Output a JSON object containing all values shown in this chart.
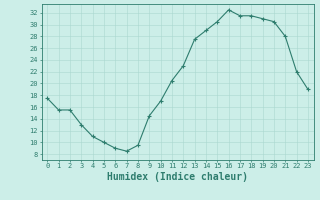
{
  "x": [
    0,
    1,
    2,
    3,
    4,
    5,
    6,
    7,
    8,
    9,
    10,
    11,
    12,
    13,
    14,
    15,
    16,
    17,
    18,
    19,
    20,
    21,
    22,
    23
  ],
  "y": [
    17.5,
    15.5,
    15.5,
    13,
    11,
    10,
    9,
    8.5,
    9.5,
    14.5,
    17,
    20.5,
    23,
    27.5,
    29,
    30.5,
    32.5,
    31.5,
    31.5,
    31,
    30.5,
    28,
    22,
    19
  ],
  "line_color": "#2e7d6e",
  "marker": "+",
  "bg_color": "#cceee8",
  "grid_color": "#aad8d0",
  "xlabel": "Humidex (Indice chaleur)",
  "xlim": [
    -0.5,
    23.5
  ],
  "ylim": [
    7,
    33.5
  ],
  "yticks": [
    8,
    10,
    12,
    14,
    16,
    18,
    20,
    22,
    24,
    26,
    28,
    30,
    32
  ],
  "xticks": [
    0,
    1,
    2,
    3,
    4,
    5,
    6,
    7,
    8,
    9,
    10,
    11,
    12,
    13,
    14,
    15,
    16,
    17,
    18,
    19,
    20,
    21,
    22,
    23
  ],
  "tick_label_fontsize": 5,
  "xlabel_fontsize": 7,
  "axis_color": "#2e7d6e",
  "linewidth": 0.8,
  "markersize": 3,
  "markeredgewidth": 0.8
}
